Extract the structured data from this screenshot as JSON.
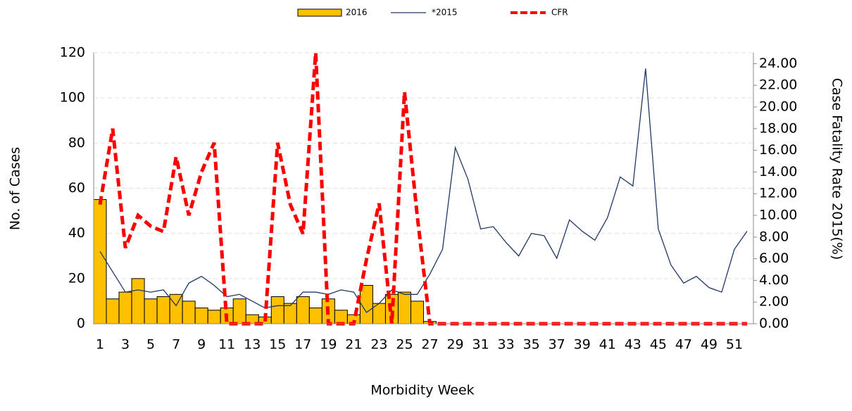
{
  "chart_data": {
    "type": "bar_line",
    "x_label": "Morbidity Week",
    "y_label": "No. of Cases",
    "y2_label": "Case Fatality Rate 2015(%)",
    "categories": [
      1,
      null,
      3,
      null,
      5,
      null,
      7,
      null,
      9,
      null,
      11,
      null,
      13,
      null,
      15,
      null,
      17,
      null,
      19,
      null,
      21,
      null,
      23,
      null,
      25,
      null,
      27,
      null,
      29,
      null,
      31,
      null,
      33,
      null,
      35,
      null,
      37,
      null,
      39,
      null,
      41,
      null,
      43,
      null,
      45,
      null,
      47,
      null,
      49,
      null,
      51,
      null
    ],
    "series": [
      {
        "name": "2016",
        "type": "bar",
        "color": "#FFC000",
        "values": [
          55,
          11,
          14,
          20,
          11,
          12,
          13,
          10,
          7,
          6,
          7,
          11,
          4,
          3,
          12,
          9,
          12,
          7,
          11,
          6,
          4,
          17,
          9,
          13,
          14,
          10,
          1,
          null,
          null,
          null,
          null,
          null,
          null,
          null,
          null,
          null,
          null,
          null,
          null,
          null,
          null,
          null,
          null,
          null,
          null,
          null,
          null,
          null,
          null,
          null,
          null,
          null
        ]
      },
      {
        "name": "*2015",
        "type": "line",
        "color": "#203864",
        "values": [
          32,
          23,
          14,
          15,
          14,
          15,
          8,
          18,
          21,
          17,
          12,
          13,
          10,
          7,
          8,
          8,
          14,
          14,
          13,
          15,
          14,
          5,
          9,
          15,
          13,
          13,
          22,
          33,
          78,
          64,
          42,
          43,
          36,
          30,
          40,
          39,
          29,
          46,
          41,
          37,
          47,
          65,
          61,
          113,
          42,
          26,
          18,
          21,
          16,
          14,
          33,
          41
        ]
      },
      {
        "name": "CFR",
        "type": "dashed_line",
        "axis": "y2",
        "color": "#FF0000",
        "values": [
          11,
          18,
          7,
          10,
          9,
          8.5,
          15.4,
          10,
          14,
          16.7,
          0,
          0,
          0,
          0,
          16.7,
          11,
          8.3,
          25,
          0,
          0,
          0,
          5.9,
          11.1,
          0,
          21.4,
          10,
          0,
          0,
          0,
          0,
          0,
          0,
          0,
          0,
          0,
          0,
          0,
          0,
          0,
          0,
          0,
          0,
          0,
          0,
          0,
          0,
          0,
          0,
          0,
          0,
          0,
          0
        ]
      }
    ],
    "ylim": [
      0,
      120
    ],
    "yticks": [
      0,
      20,
      40,
      60,
      80,
      100,
      120
    ],
    "y2lim": [
      0,
      25
    ],
    "y2ticks": [
      {
        "value": 0,
        "label": "0.00"
      },
      {
        "value": 2,
        "label": "2.00"
      },
      {
        "value": 4,
        "label": "4.00"
      },
      {
        "value": 6,
        "label": "6.00"
      },
      {
        "value": 8,
        "label": "8.00"
      },
      {
        "value": 10,
        "label": "10.00"
      },
      {
        "value": 12,
        "label": "12.00"
      },
      {
        "value": 14,
        "label": "14.00"
      },
      {
        "value": 16,
        "label": "16.00"
      },
      {
        "value": 18,
        "label": "18.00"
      },
      {
        "value": 20,
        "label": "20.00"
      },
      {
        "value": 22,
        "label": "22.00"
      },
      {
        "value": 24,
        "label": "24.00"
      }
    ],
    "grid": true,
    "legend": "top"
  }
}
